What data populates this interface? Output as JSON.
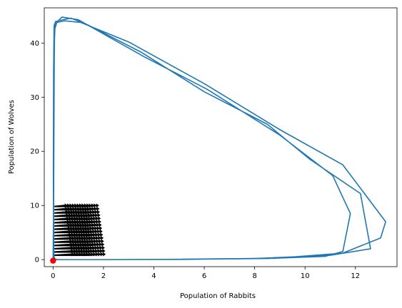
{
  "chart_data": {
    "type": "line",
    "title": "",
    "xlabel": "Population of Rabbits",
    "ylabel": "Population of Wolves",
    "xlim": [
      -0.35,
      13.65
    ],
    "ylim": [
      -1.3,
      46.5
    ],
    "xticks": [
      0,
      2,
      4,
      6,
      8,
      10,
      12
    ],
    "yticks": [
      0,
      10,
      20,
      30,
      40
    ],
    "grid": false,
    "legend": "none",
    "colors": {
      "line": "#1f77b4",
      "start_marker": "#ff0000",
      "arrows": "#000000"
    },
    "series": [
      {
        "type": "line",
        "x": [
          0.0,
          0.02,
          0.05,
          0.08,
          0.35,
          1.0,
          3.6,
          6.1,
          9.0,
          11.1,
          11.8,
          11.5,
          10.8,
          8.5,
          5.0,
          2.0,
          0.6,
          0.2,
          0.05,
          0.02,
          0.01,
          0.02,
          0.04,
          0.1,
          0.3,
          0.7,
          1.4,
          3.5,
          6.0,
          8.5,
          10.2,
          12.2,
          12.6,
          11.0,
          8.0,
          4.5,
          1.5,
          0.4,
          0.1,
          0.03,
          0.02,
          0.03,
          0.06,
          0.15,
          0.45,
          1.1,
          3.0,
          6.0,
          9.0,
          11.5,
          13.2,
          13.0,
          11.5,
          9.0,
          5.5,
          2.0,
          0.5,
          0.1,
          0.0
        ],
        "y": [
          -0.2,
          10.0,
          40.0,
          43.5,
          44.8,
          44.3,
          37.5,
          31.5,
          23.0,
          15.5,
          8.5,
          1.5,
          0.6,
          0.2,
          0.05,
          0.0,
          0.0,
          0.0,
          0.1,
          2.0,
          15.0,
          35.0,
          43.2,
          44.0,
          44.2,
          44.6,
          43.3,
          38.3,
          31.0,
          25.0,
          18.5,
          12.2,
          2.0,
          0.8,
          0.2,
          0.05,
          0.0,
          0.0,
          0.0,
          0.5,
          8.0,
          30.0,
          42.5,
          43.8,
          44.1,
          43.8,
          40.2,
          32.5,
          24.0,
          17.5,
          7.0,
          4.0,
          1.2,
          0.3,
          0.05,
          0.0,
          0.0,
          0.0,
          0.0
        ]
      }
    ],
    "start_point": {
      "x": 0.0,
      "y": -0.2
    },
    "quiver": {
      "x_range": [
        0.05,
        1.3
      ],
      "y_range": [
        0.8,
        9.8
      ],
      "nx": 14,
      "ny": 16
    }
  }
}
